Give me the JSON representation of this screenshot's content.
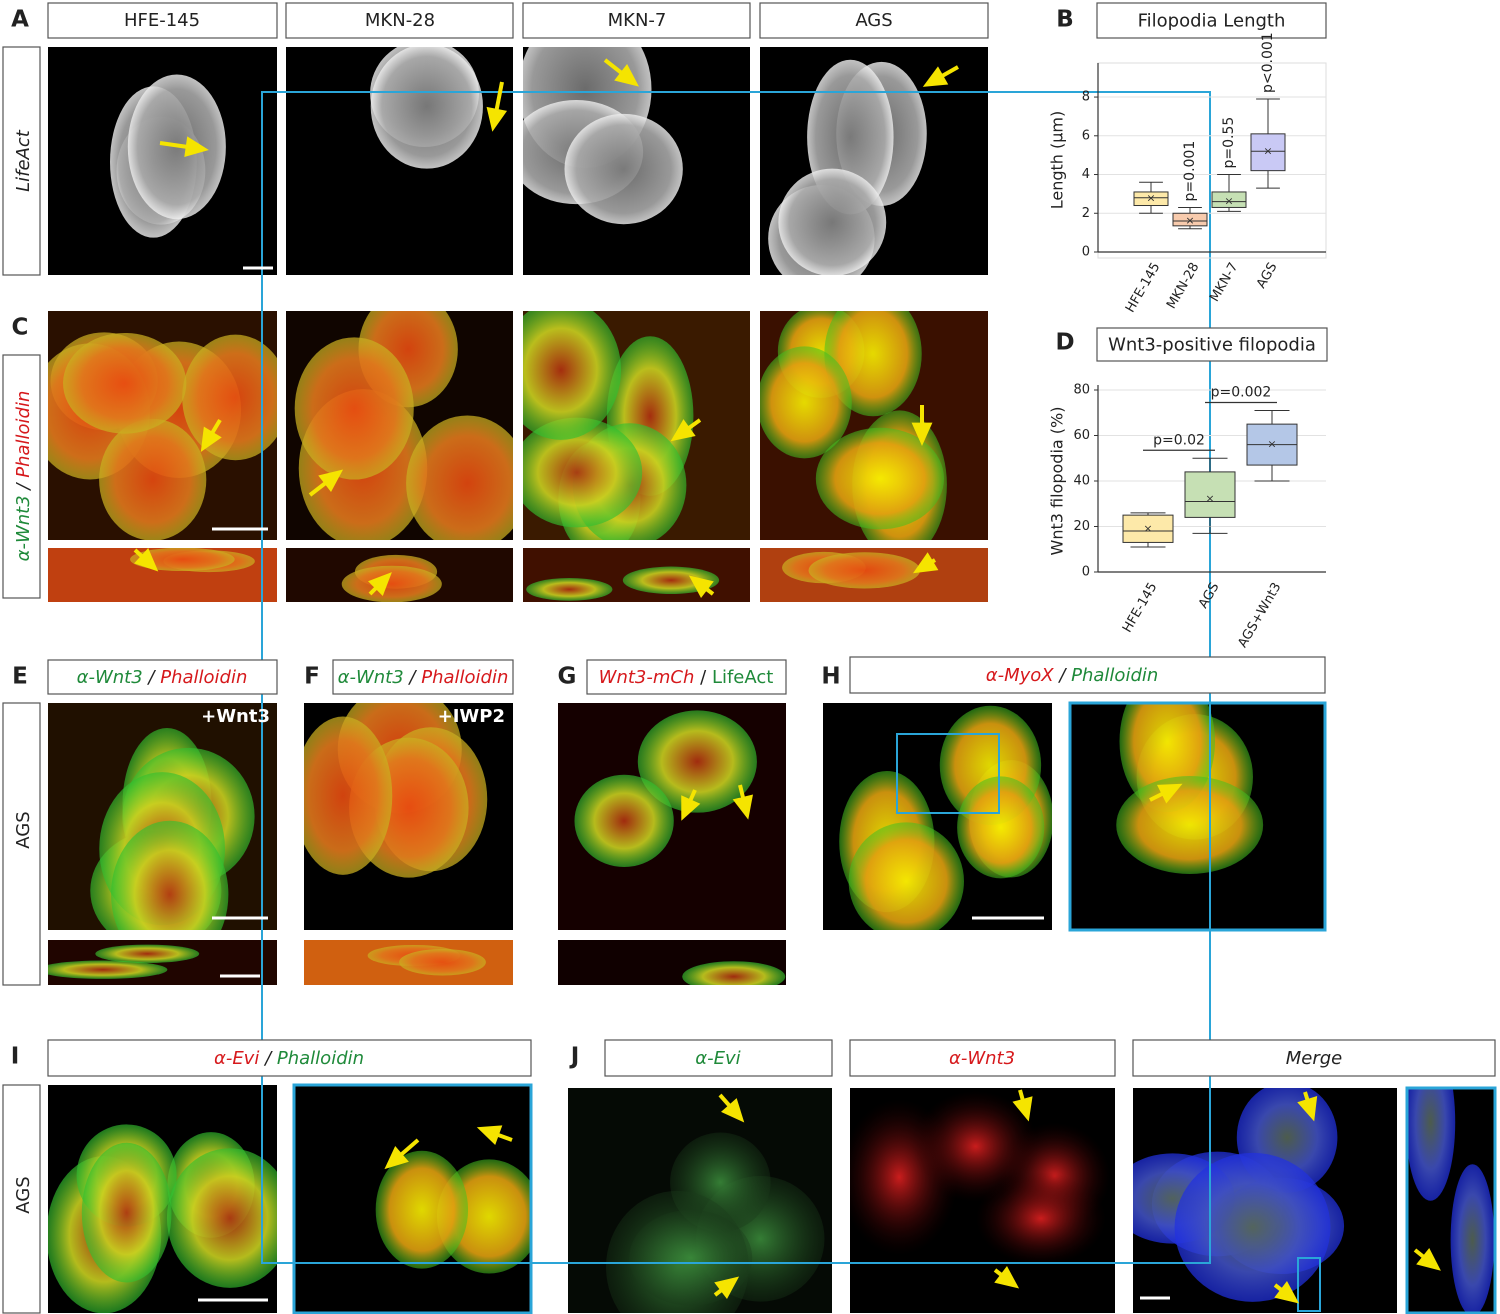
{
  "panel_a": {
    "label": "A",
    "row_label": "LifeAct",
    "columns": [
      "HFE-145",
      "MKN-28",
      "MKN-7",
      "AGS"
    ]
  },
  "panel_b": {
    "label": "B"
  },
  "panel_c": {
    "label": "C",
    "row_label": [
      "α-Wnt3",
      "/",
      "Phalloidin"
    ]
  },
  "panel_d": {
    "label": "D"
  },
  "panel_e": {
    "label": "E",
    "header": [
      "α-Wnt3",
      "/",
      "Phalloidin"
    ],
    "row_label": "AGS",
    "inset": "+Wnt3"
  },
  "panel_f": {
    "label": "F",
    "header": [
      "α-Wnt3",
      "/",
      "Phalloidin"
    ],
    "inset": "+IWP2"
  },
  "panel_g": {
    "label": "G",
    "header": [
      "Wnt3-mCh",
      "/",
      "LifeAct"
    ]
  },
  "panel_h": {
    "label": "H",
    "header": [
      "α-MyoX",
      "/",
      "Phalloidin"
    ]
  },
  "panel_i": {
    "label": "I",
    "header": [
      "α-Evi",
      "/",
      "Phalloidin"
    ],
    "row_label": "AGS"
  },
  "panel_j": {
    "label": "J",
    "headers": [
      "α-Evi",
      "α-Wnt3",
      "Merge"
    ]
  },
  "chart_data": [
    {
      "type": "box",
      "title": "Filopodia Length",
      "y_label": "Length (µm)",
      "categories": [
        "HFE-145",
        "MKN-28",
        "MKN-7",
        "AGS"
      ],
      "boxes": [
        {
          "min": 2.0,
          "q1": 2.4,
          "median": 2.8,
          "q3": 3.1,
          "max": 3.6,
          "mean": 2.75,
          "color": "#fde9a9"
        },
        {
          "min": 1.2,
          "q1": 1.35,
          "median": 1.6,
          "q3": 2.0,
          "max": 2.3,
          "mean": 1.6,
          "color": "#f8cbad"
        },
        {
          "min": 2.1,
          "q1": 2.3,
          "median": 2.6,
          "q3": 3.1,
          "max": 4.0,
          "mean": 2.6,
          "color": "#c6e0b4"
        },
        {
          "min": 3.3,
          "q1": 4.2,
          "median": 5.2,
          "q3": 6.1,
          "max": 7.9,
          "mean": 5.2,
          "color": "#c9c9f5"
        }
      ],
      "annotations": [
        null,
        "p=0.001",
        "p=0.55",
        "p<0.001"
      ],
      "ylim": [
        0,
        9.5
      ],
      "yticks": [
        0,
        2,
        4,
        6,
        8
      ],
      "grid": true
    },
    {
      "type": "box",
      "title": "Wnt3-positive filopodia",
      "y_label": "Wnt3 filopodia (%)",
      "categories": [
        "HFE-145",
        "AGS",
        "AGS+Wnt3"
      ],
      "boxes": [
        {
          "min": 11,
          "q1": 13,
          "median": 18,
          "q3": 25,
          "max": 26,
          "mean": 19,
          "color": "#fde9a9"
        },
        {
          "min": 17,
          "q1": 24,
          "median": 31,
          "q3": 44,
          "max": 50,
          "mean": 32,
          "color": "#c6e0b4"
        },
        {
          "min": 40,
          "q1": 47,
          "median": 56,
          "q3": 65,
          "max": 71,
          "mean": 56,
          "color": "#b4c7e7"
        }
      ],
      "brackets": [
        "p=0.02",
        "p=0.002"
      ],
      "ylim": [
        0,
        80
      ],
      "yticks": [
        0,
        20,
        40,
        60,
        80
      ],
      "grid": true
    }
  ]
}
